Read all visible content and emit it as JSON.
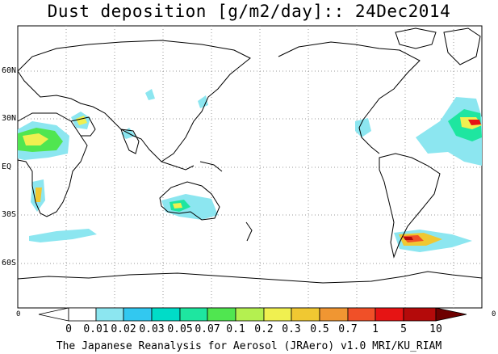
{
  "title": "Dust deposition [g/m2/day]:: 24Dec2014",
  "footer": "The Japanese Reanalysis for Aerosol (JRAero) v1.0 MRI/KU_RIAM",
  "lat_labels": [
    "60N",
    "30N",
    "EQ",
    "30S",
    "60S"
  ],
  "axis_zero_left": "0",
  "axis_zero_right": "0",
  "colorbar": {
    "labels": [
      "0",
      "0.01",
      "0.02",
      "0.03",
      "0.05",
      "0.07",
      "0.1",
      "0.2",
      "0.3",
      "0.5",
      "0.7",
      "1",
      "5",
      "10"
    ],
    "colors": [
      "#ffffff",
      "#8ce6f0",
      "#32c8f0",
      "#00dcc8",
      "#1ee6a0",
      "#50e650",
      "#b4f050",
      "#f0f050",
      "#f0c832",
      "#f09632",
      "#f05028",
      "#e61414",
      "#b40a0a",
      "#780000"
    ],
    "under_color": "#ffffff",
    "over_color": "#6e0000"
  }
}
